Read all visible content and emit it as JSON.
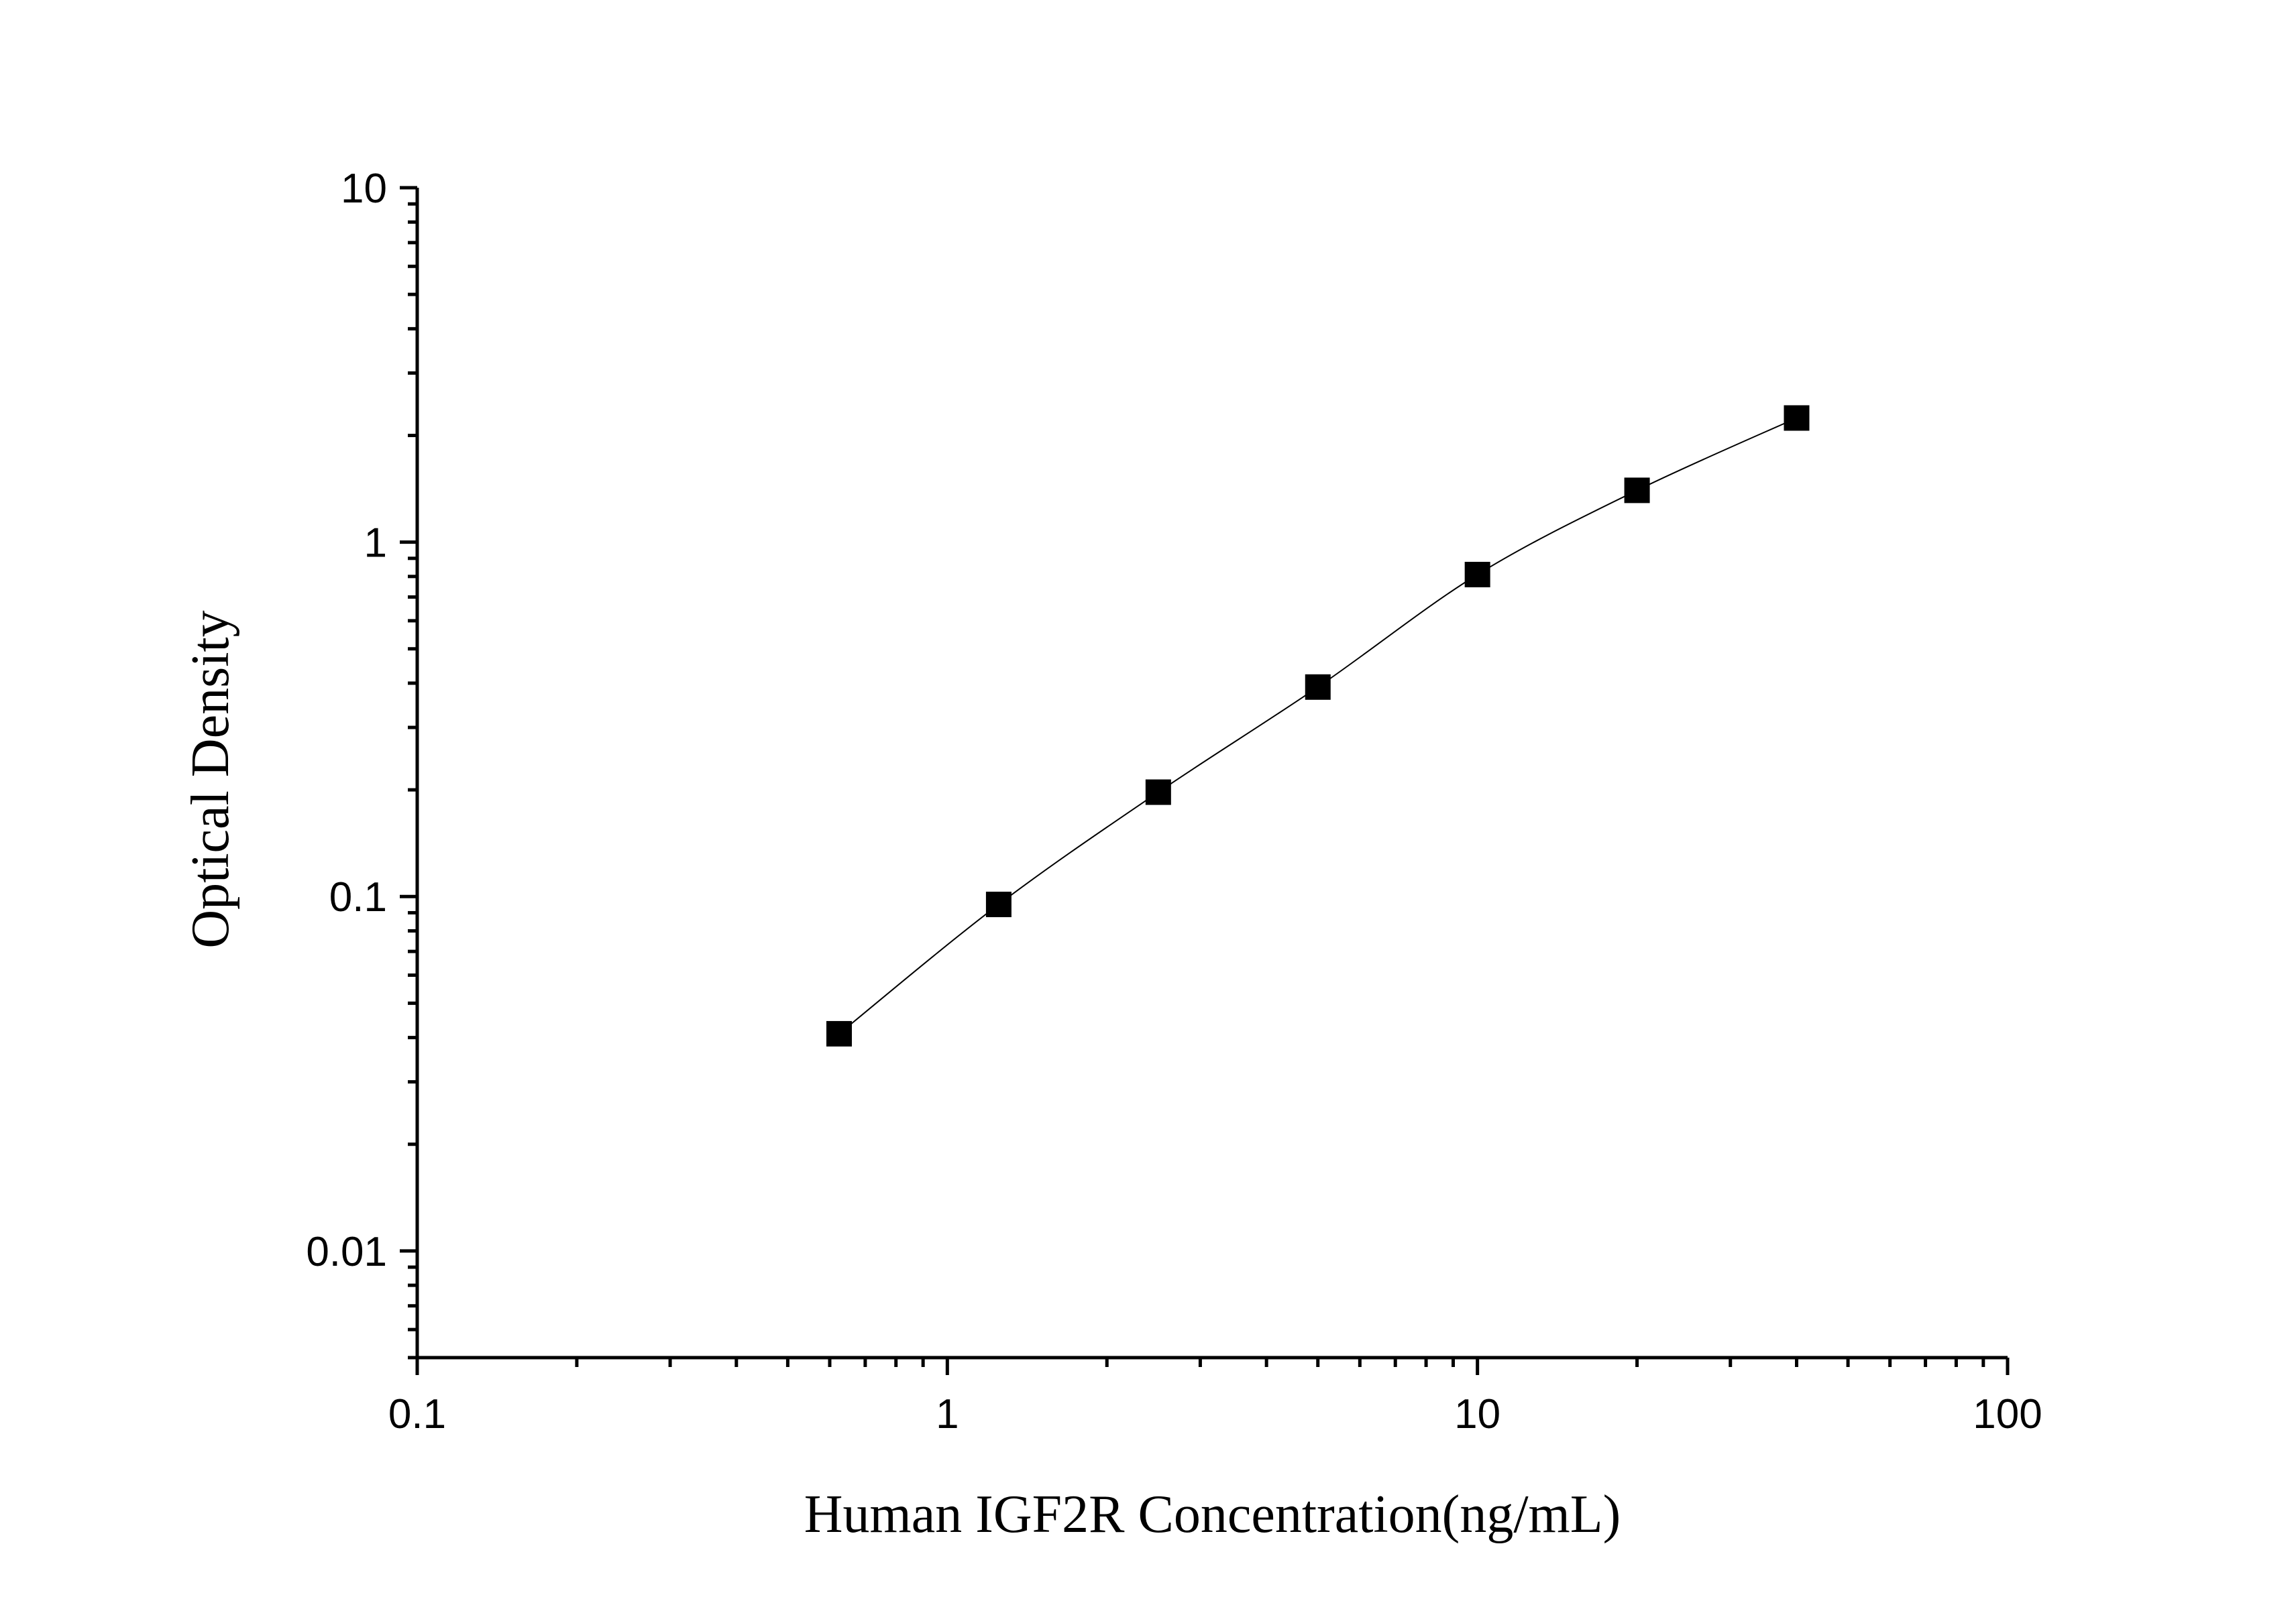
{
  "chart_data": {
    "type": "scatter",
    "title": "",
    "xlabel": "Human IGF2R Concentration(ng/mL)",
    "ylabel": "Optical Density",
    "x_scale": "log",
    "y_scale": "log",
    "xlim": [
      0.1,
      100
    ],
    "ylim": [
      0.005,
      10
    ],
    "x_ticks": [
      0.1,
      1,
      10,
      100
    ],
    "x_tick_labels": [
      "0.1",
      "1",
      "10",
      "100"
    ],
    "y_ticks": [
      0.01,
      0.1,
      1,
      10
    ],
    "y_tick_labels": [
      "0.01",
      "0.1",
      "1",
      "10"
    ],
    "grid": false,
    "legend": "none",
    "marker": "square",
    "marker_color": "#000000",
    "fit_line": "smooth curve through points",
    "series": [
      {
        "x": [
          0.625,
          1.25,
          2.5,
          5,
          10,
          20,
          40
        ],
        "y": [
          0.041,
          0.095,
          0.197,
          0.39,
          0.81,
          1.4,
          2.24
        ]
      }
    ]
  }
}
